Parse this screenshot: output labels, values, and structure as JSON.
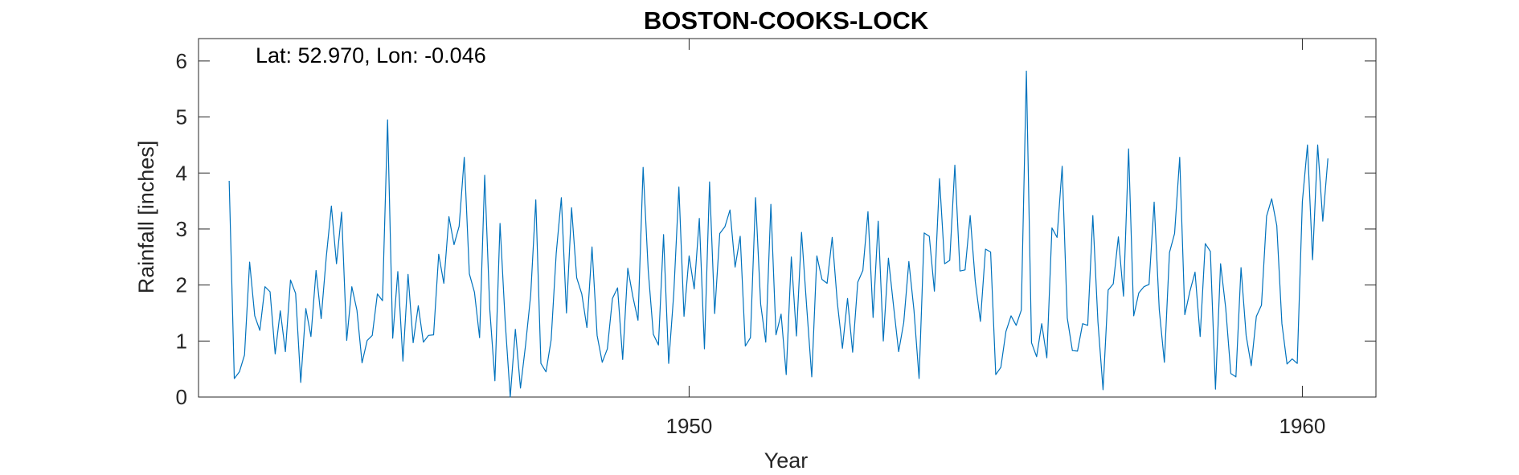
{
  "chart_data": {
    "type": "line",
    "title": "BOSTON-COOKS-LOCK",
    "xlabel": "Year",
    "ylabel": "Rainfall [inches]",
    "annotation": "Lat: 52.970, Lon: -0.046",
    "xlim": [
      1942.0,
      1961.2
    ],
    "ylim": [
      0,
      6.4
    ],
    "x_ticks": [
      1950,
      1960
    ],
    "x_tick_labels": [
      "1950",
      "1960"
    ],
    "y_ticks": [
      0,
      1,
      2,
      3,
      4,
      5,
      6
    ],
    "y_tick_labels": [
      "0",
      "1",
      "2",
      "3",
      "4",
      "5",
      "6"
    ],
    "grid": false,
    "line_color": "#0072BD",
    "x_start": 1942.5,
    "x_step": 0.0833333,
    "series": [
      {
        "values": [
          3.86,
          0.33,
          0.45,
          0.75,
          2.41,
          1.45,
          1.19,
          1.97,
          1.88,
          0.77,
          1.54,
          0.81,
          2.09,
          1.85,
          0.26,
          1.58,
          1.08,
          2.26,
          1.4,
          2.5,
          3.41,
          2.38,
          3.3,
          1.01,
          1.97,
          1.55,
          0.61,
          1.01,
          1.1,
          1.84,
          1.72,
          4.95,
          1.05,
          2.24,
          0.64,
          2.19,
          0.97,
          1.63,
          0.98,
          1.1,
          1.11,
          2.55,
          2.03,
          3.22,
          2.72,
          3.05,
          4.28,
          2.2,
          1.87,
          1.06,
          3.96,
          1.56,
          0.29,
          3.1,
          1.36,
          0.0,
          1.21,
          0.16,
          0.93,
          1.82,
          3.52,
          0.6,
          0.45,
          1.02,
          2.57,
          3.56,
          1.5,
          3.38,
          2.13,
          1.84,
          1.24,
          2.68,
          1.1,
          0.62,
          0.86,
          1.76,
          1.95,
          0.67,
          2.3,
          1.79,
          1.37,
          4.1,
          2.26,
          1.12,
          0.93,
          2.9,
          0.6,
          1.85,
          3.75,
          1.44,
          2.52,
          1.93,
          3.19,
          0.86,
          3.84,
          1.49,
          2.92,
          3.04,
          3.34,
          2.32,
          2.87,
          0.91,
          1.06,
          3.56,
          1.66,
          0.98,
          3.44,
          1.11,
          1.48,
          0.4,
          2.5,
          1.09,
          2.94,
          1.62,
          0.36,
          2.52,
          2.1,
          2.03,
          2.85,
          1.69,
          0.87,
          1.76,
          0.8,
          2.05,
          2.26,
          3.31,
          1.42,
          3.14,
          1.0,
          2.48,
          1.63,
          0.81,
          1.33,
          2.42,
          1.55,
          0.33,
          2.93,
          2.87,
          1.89,
          3.9,
          2.38,
          2.44,
          4.14,
          2.25,
          2.27,
          3.24,
          2.06,
          1.35,
          2.64,
          2.59,
          0.4,
          0.53,
          1.17,
          1.45,
          1.28,
          1.55,
          5.82,
          0.97,
          0.72,
          1.31,
          0.7,
          3.02,
          2.85,
          4.12,
          1.41,
          0.83,
          0.82,
          1.31,
          1.28,
          3.24,
          1.34,
          0.13,
          1.91,
          2.02,
          2.86,
          1.8,
          4.43,
          1.45,
          1.86,
          1.97,
          2.01,
          3.48,
          1.56,
          0.62,
          2.58,
          2.92,
          4.28,
          1.47,
          1.89,
          2.23,
          1.08,
          2.74,
          2.6,
          0.14,
          2.38,
          1.59,
          0.42,
          0.36,
          2.31,
          1.1,
          0.56,
          1.44,
          1.64,
          3.23,
          3.54,
          3.06,
          1.31,
          0.59,
          0.68,
          0.6,
          3.49,
          4.5,
          2.45,
          4.5,
          3.14,
          4.26
        ]
      }
    ]
  }
}
